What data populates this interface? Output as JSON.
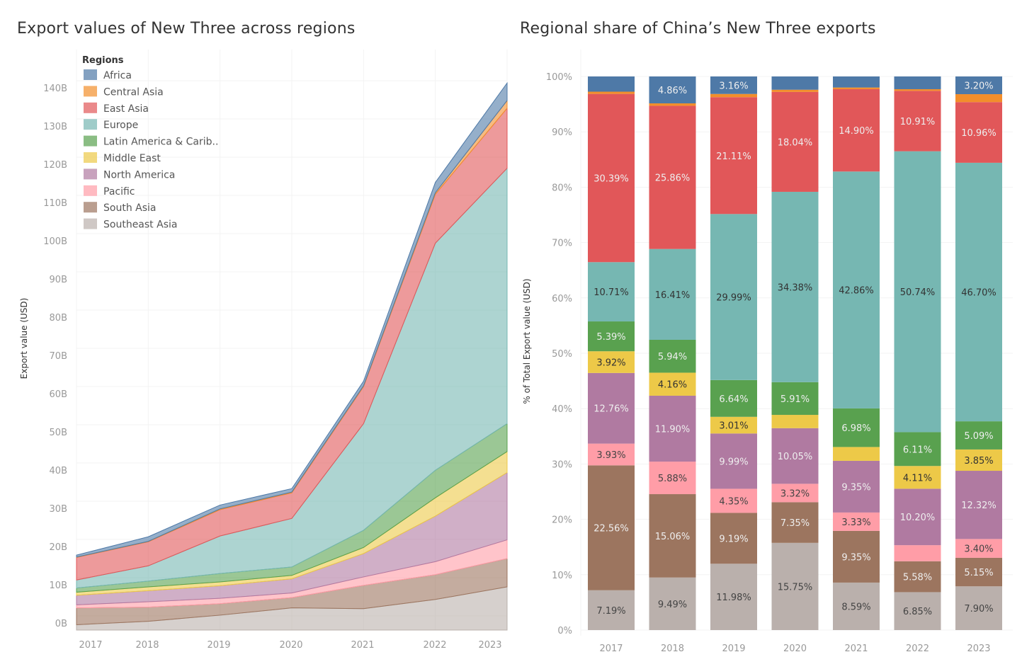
{
  "chart_data": [
    {
      "type": "area",
      "stacked": true,
      "title": "Export values of New Three across regions",
      "ylabel": "Export value (USD)",
      "xlabel": "",
      "x": [
        "2017",
        "2018",
        "2019",
        "2020",
        "2021",
        "2022",
        "2023"
      ],
      "yticks": [
        "0B",
        "10B",
        "20B",
        "30B",
        "40B",
        "50B",
        "60B",
        "70B",
        "80B",
        "90B",
        "100B",
        "110B",
        "120B",
        "130B",
        "140B"
      ],
      "ylim": [
        0,
        145
      ],
      "unit": "B USD",
      "grid": true,
      "legend": {
        "title": "Regions",
        "placement": "top-left"
      },
      "series": [
        {
          "name": "Africa",
          "color": "#4e79a7",
          "values": [
            0.5,
            1.2,
            1.0,
            0.9,
            1.2,
            2.7,
            4.6
          ]
        },
        {
          "name": "Central Asia",
          "color": "#f28e2b",
          "values": [
            0.1,
            0.1,
            0.2,
            0.2,
            0.2,
            0.4,
            2.0
          ]
        },
        {
          "name": "East Asia",
          "color": "#e15759",
          "values": [
            5.9,
            6.3,
            6.9,
            6.7,
            9.7,
            12.8,
            15.7
          ]
        },
        {
          "name": "Europe",
          "color": "#76b7b2",
          "values": [
            2.1,
            4.0,
            9.8,
            12.7,
            27.9,
            59.4,
            66.8
          ]
        },
        {
          "name": "Latin America & Carib..",
          "color": "#59a14f",
          "values": [
            1.1,
            1.5,
            2.2,
            2.2,
            4.5,
            7.2,
            7.3
          ]
        },
        {
          "name": "Middle East",
          "color": "#edc948",
          "values": [
            0.8,
            1.0,
            1.0,
            0.9,
            1.6,
            4.8,
            5.5
          ]
        },
        {
          "name": "North America",
          "color": "#b07aa1",
          "values": [
            2.5,
            2.9,
            3.3,
            3.7,
            6.1,
            11.9,
            17.6
          ]
        },
        {
          "name": "Pacific",
          "color": "#ff9da7",
          "values": [
            0.8,
            1.4,
            1.4,
            1.2,
            2.2,
            3.4,
            4.9
          ]
        },
        {
          "name": "South Asia",
          "color": "#9c755f",
          "values": [
            4.4,
            3.7,
            3.0,
            2.7,
            6.1,
            6.5,
            7.4
          ]
        },
        {
          "name": "Southeast Asia",
          "color": "#bab0ac",
          "values": [
            1.4,
            2.3,
            3.9,
            5.8,
            5.6,
            8.0,
            11.3
          ]
        }
      ]
    },
    {
      "type": "bar",
      "stacked": true,
      "normalized": true,
      "title": "Regional share of China’s New Three exports",
      "ylabel": "% of Total Export value (USD)",
      "xlabel": "",
      "categories": [
        "2017",
        "2018",
        "2019",
        "2020",
        "2021",
        "2022",
        "2023"
      ],
      "yticks": [
        "0%",
        "10%",
        "20%",
        "30%",
        "40%",
        "50%",
        "60%",
        "70%",
        "80%",
        "90%",
        "100%"
      ],
      "ylim": [
        0,
        100
      ],
      "grid": true,
      "series": [
        {
          "name": "Southeast Asia",
          "color": "#bab0ac",
          "text": "#444",
          "values": [
            7.19,
            9.49,
            11.98,
            15.75,
            8.59,
            6.85,
            7.9
          ],
          "labels": [
            "7.19%",
            "9.49%",
            "11.98%",
            "15.75%",
            "8.59%",
            "6.85%",
            "7.90%"
          ]
        },
        {
          "name": "South Asia",
          "color": "#9c755f",
          "text": "#eee",
          "values": [
            22.56,
            15.06,
            9.19,
            7.35,
            9.35,
            5.58,
            5.15
          ],
          "labels": [
            "22.56%",
            "15.06%",
            "9.19%",
            "7.35%",
            "9.35%",
            "5.58%",
            "5.15%"
          ]
        },
        {
          "name": "Pacific",
          "color": "#ff9da7",
          "text": "#444",
          "values": [
            3.93,
            5.88,
            4.35,
            3.32,
            3.33,
            2.9,
            3.4
          ],
          "labels": [
            "3.93%",
            "5.88%",
            "4.35%",
            "3.32%",
            "3.33%",
            "",
            "3.40%"
          ]
        },
        {
          "name": "North America",
          "color": "#b07aa1",
          "text": "#eee",
          "values": [
            12.76,
            11.9,
            9.99,
            10.05,
            9.35,
            10.2,
            12.32
          ],
          "labels": [
            "12.76%",
            "11.90%",
            "9.99%",
            "10.05%",
            "9.35%",
            "10.20%",
            "12.32%"
          ]
        },
        {
          "name": "Middle East",
          "color": "#edc948",
          "text": "#333",
          "values": [
            3.92,
            4.16,
            3.01,
            2.4,
            2.5,
            4.11,
            3.85
          ],
          "labels": [
            "3.92%",
            "4.16%",
            "3.01%",
            "",
            "",
            "4.11%",
            "3.85%"
          ]
        },
        {
          "name": "Latin America & Carib..",
          "color": "#59a14f",
          "text": "#eee",
          "values": [
            5.39,
            5.94,
            6.64,
            5.91,
            6.98,
            6.11,
            5.09
          ],
          "labels": [
            "5.39%",
            "5.94%",
            "6.64%",
            "5.91%",
            "6.98%",
            "6.11%",
            "5.09%"
          ]
        },
        {
          "name": "Europe",
          "color": "#76b7b2",
          "text": "#333",
          "values": [
            10.71,
            16.41,
            29.99,
            34.38,
            42.86,
            50.74,
            46.7
          ],
          "labels": [
            "10.71%",
            "16.41%",
            "29.99%",
            "34.38%",
            "42.86%",
            "50.74%",
            "46.70%"
          ]
        },
        {
          "name": "East Asia",
          "color": "#e15759",
          "text": "#eee",
          "values": [
            30.39,
            25.86,
            21.11,
            18.04,
            14.9,
            10.91,
            10.96
          ],
          "labels": [
            "30.39%",
            "25.86%",
            "21.11%",
            "18.04%",
            "14.90%",
            "10.91%",
            "10.96%"
          ]
        },
        {
          "name": "Central Asia",
          "color": "#f28e2b",
          "text": "#eee",
          "values": [
            0.4,
            0.44,
            0.58,
            0.4,
            0.3,
            0.3,
            1.43
          ],
          "labels": [
            "",
            "",
            "",
            "",
            "",
            "",
            ""
          ]
        },
        {
          "name": "Africa",
          "color": "#4e79a7",
          "text": "#eee",
          "values": [
            2.75,
            4.86,
            3.16,
            2.4,
            2.0,
            2.3,
            3.2
          ],
          "labels": [
            "",
            "4.86%",
            "3.16%",
            "",
            "",
            "",
            "3.20%"
          ]
        }
      ]
    }
  ]
}
